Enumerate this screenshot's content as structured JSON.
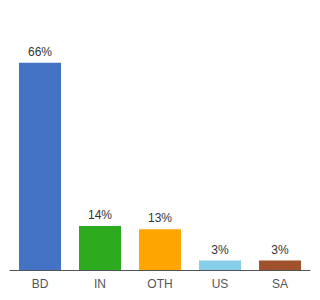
{
  "chart_data": {
    "type": "bar",
    "categories": [
      "BD",
      "IN",
      "OTH",
      "US",
      "SA"
    ],
    "values": [
      66,
      14,
      13,
      3,
      3
    ],
    "value_labels": [
      "66%",
      "14%",
      "13%",
      "3%",
      "3%"
    ],
    "colors": [
      "#4472C4",
      "#2EAA1E",
      "#FFA500",
      "#87CEEB",
      "#A0522D"
    ],
    "ylim": [
      0,
      78
    ],
    "data_labels": true,
    "grid": false,
    "tick_labels": "x"
  }
}
